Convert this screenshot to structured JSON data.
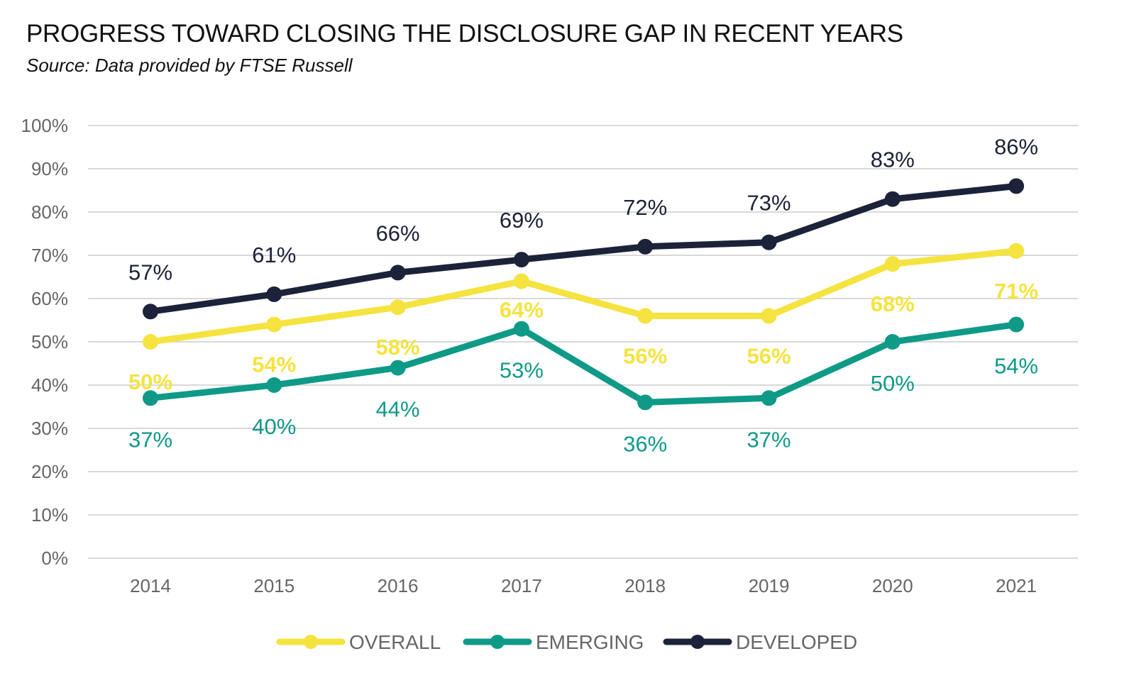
{
  "title": "PROGRESS TOWARD CLOSING THE DISCLOSURE GAP IN RECENT YEARS",
  "subtitle": "Source: Data provided by FTSE Russell",
  "chart_data": {
    "type": "line",
    "title": "PROGRESS TOWARD CLOSING THE DISCLOSURE GAP IN RECENT YEARS",
    "subtitle": "Source: Data provided by FTSE Russell",
    "categories": [
      "2014",
      "2015",
      "2016",
      "2017",
      "2018",
      "2019",
      "2020",
      "2021"
    ],
    "ylim": [
      0,
      100
    ],
    "yticks": [
      0,
      10,
      20,
      30,
      40,
      50,
      60,
      70,
      80,
      90,
      100
    ],
    "ytick_labels": [
      "0%",
      "10%",
      "20%",
      "30%",
      "40%",
      "50%",
      "60%",
      "70%",
      "80%",
      "90%",
      "100%"
    ],
    "grid": true,
    "legend_position": "bottom",
    "series": [
      {
        "name": "OVERALL",
        "color": "#F5E33F",
        "values": [
          50,
          54,
          58,
          64,
          56,
          56,
          68,
          71
        ],
        "labels": [
          "50%",
          "54%",
          "58%",
          "64%",
          "56%",
          "56%",
          "68%",
          "71%"
        ],
        "label_bold": true
      },
      {
        "name": "EMERGING",
        "color": "#0E9A86",
        "values": [
          37,
          40,
          44,
          53,
          36,
          37,
          50,
          54
        ],
        "labels": [
          "37%",
          "40%",
          "44%",
          "53%",
          "36%",
          "37%",
          "50%",
          "54%"
        ],
        "label_bold": false
      },
      {
        "name": "DEVELOPED",
        "color": "#1C2239",
        "values": [
          57,
          61,
          66,
          69,
          72,
          73,
          83,
          86
        ],
        "labels": [
          "57%",
          "61%",
          "66%",
          "69%",
          "72%",
          "73%",
          "83%",
          "86%"
        ],
        "label_bold": false
      }
    ]
  }
}
